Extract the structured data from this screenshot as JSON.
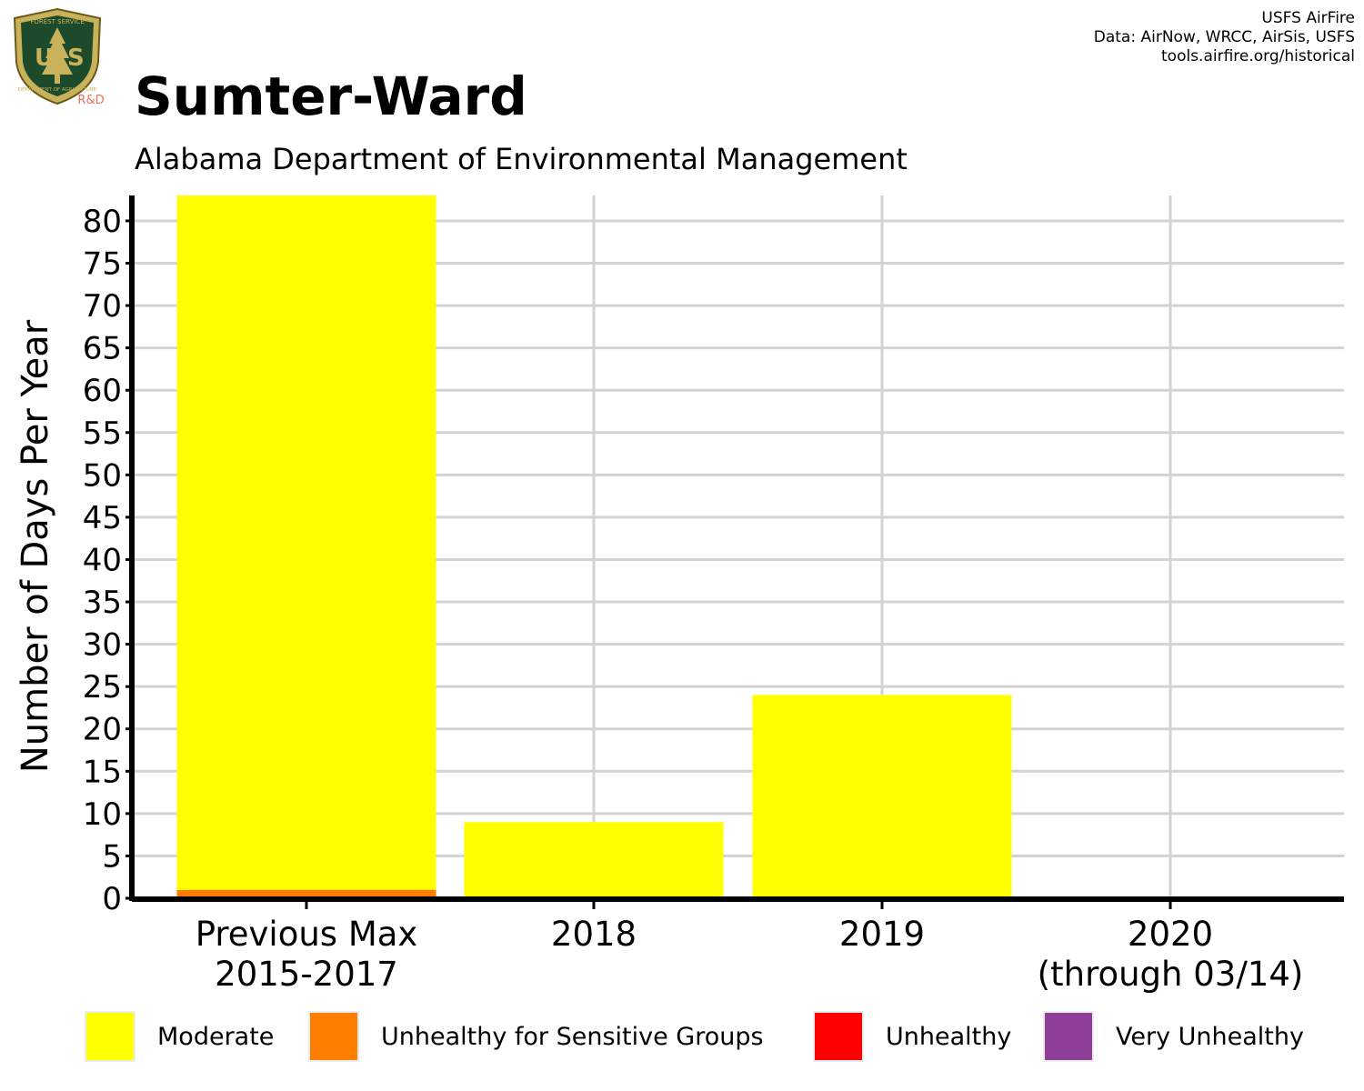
{
  "logo": {
    "top_text": "FOREST SERVICE",
    "initials": "USFS",
    "bottom_text": "DEPARTMENT OF AGRICULTURE",
    "tag": "R&D"
  },
  "header": {
    "title": "Sumter-Ward",
    "subtitle": "Alabama Department of Environmental Management"
  },
  "credits": [
    "USFS AirFire",
    "Data: AirNow, WRCC, AirSis, USFS",
    "tools.airfire.org/historical"
  ],
  "chart_data": {
    "type": "bar",
    "stacked": true,
    "categories": [
      [
        "Previous Max",
        "2015-2017"
      ],
      [
        "2018"
      ],
      [
        "2019"
      ],
      [
        "2020",
        "(through 03/14)"
      ]
    ],
    "series": [
      {
        "name": "Unhealthy for Sensitive Groups",
        "color": "#FF7E00",
        "values": [
          1,
          0,
          0,
          0
        ]
      },
      {
        "name": "Moderate",
        "color": "#FFFF00",
        "values": [
          82,
          9,
          24,
          0
        ]
      },
      {
        "name": "Unhealthy",
        "color": "#FF0000",
        "values": [
          0,
          0,
          0,
          0
        ]
      },
      {
        "name": "Very Unhealthy",
        "color": "#8F3F97",
        "values": [
          0,
          0,
          0,
          0
        ]
      }
    ],
    "ylabel": "Number of Days Per Year",
    "ylim": [
      0,
      83
    ],
    "yticks": [
      "0",
      "5",
      "10",
      "15",
      "20",
      "25",
      "30",
      "35",
      "40",
      "45",
      "50",
      "55",
      "60",
      "65",
      "70",
      "75",
      "80"
    ],
    "grid": true,
    "legend_position": "bottom"
  },
  "legend": [
    {
      "label": "Moderate",
      "color": "#FFFF00"
    },
    {
      "label": "Unhealthy for Sensitive Groups",
      "color": "#FF7E00"
    },
    {
      "label": "Unhealthy",
      "color": "#FF0000"
    },
    {
      "label": "Very Unhealthy",
      "color": "#8F3F97"
    }
  ]
}
